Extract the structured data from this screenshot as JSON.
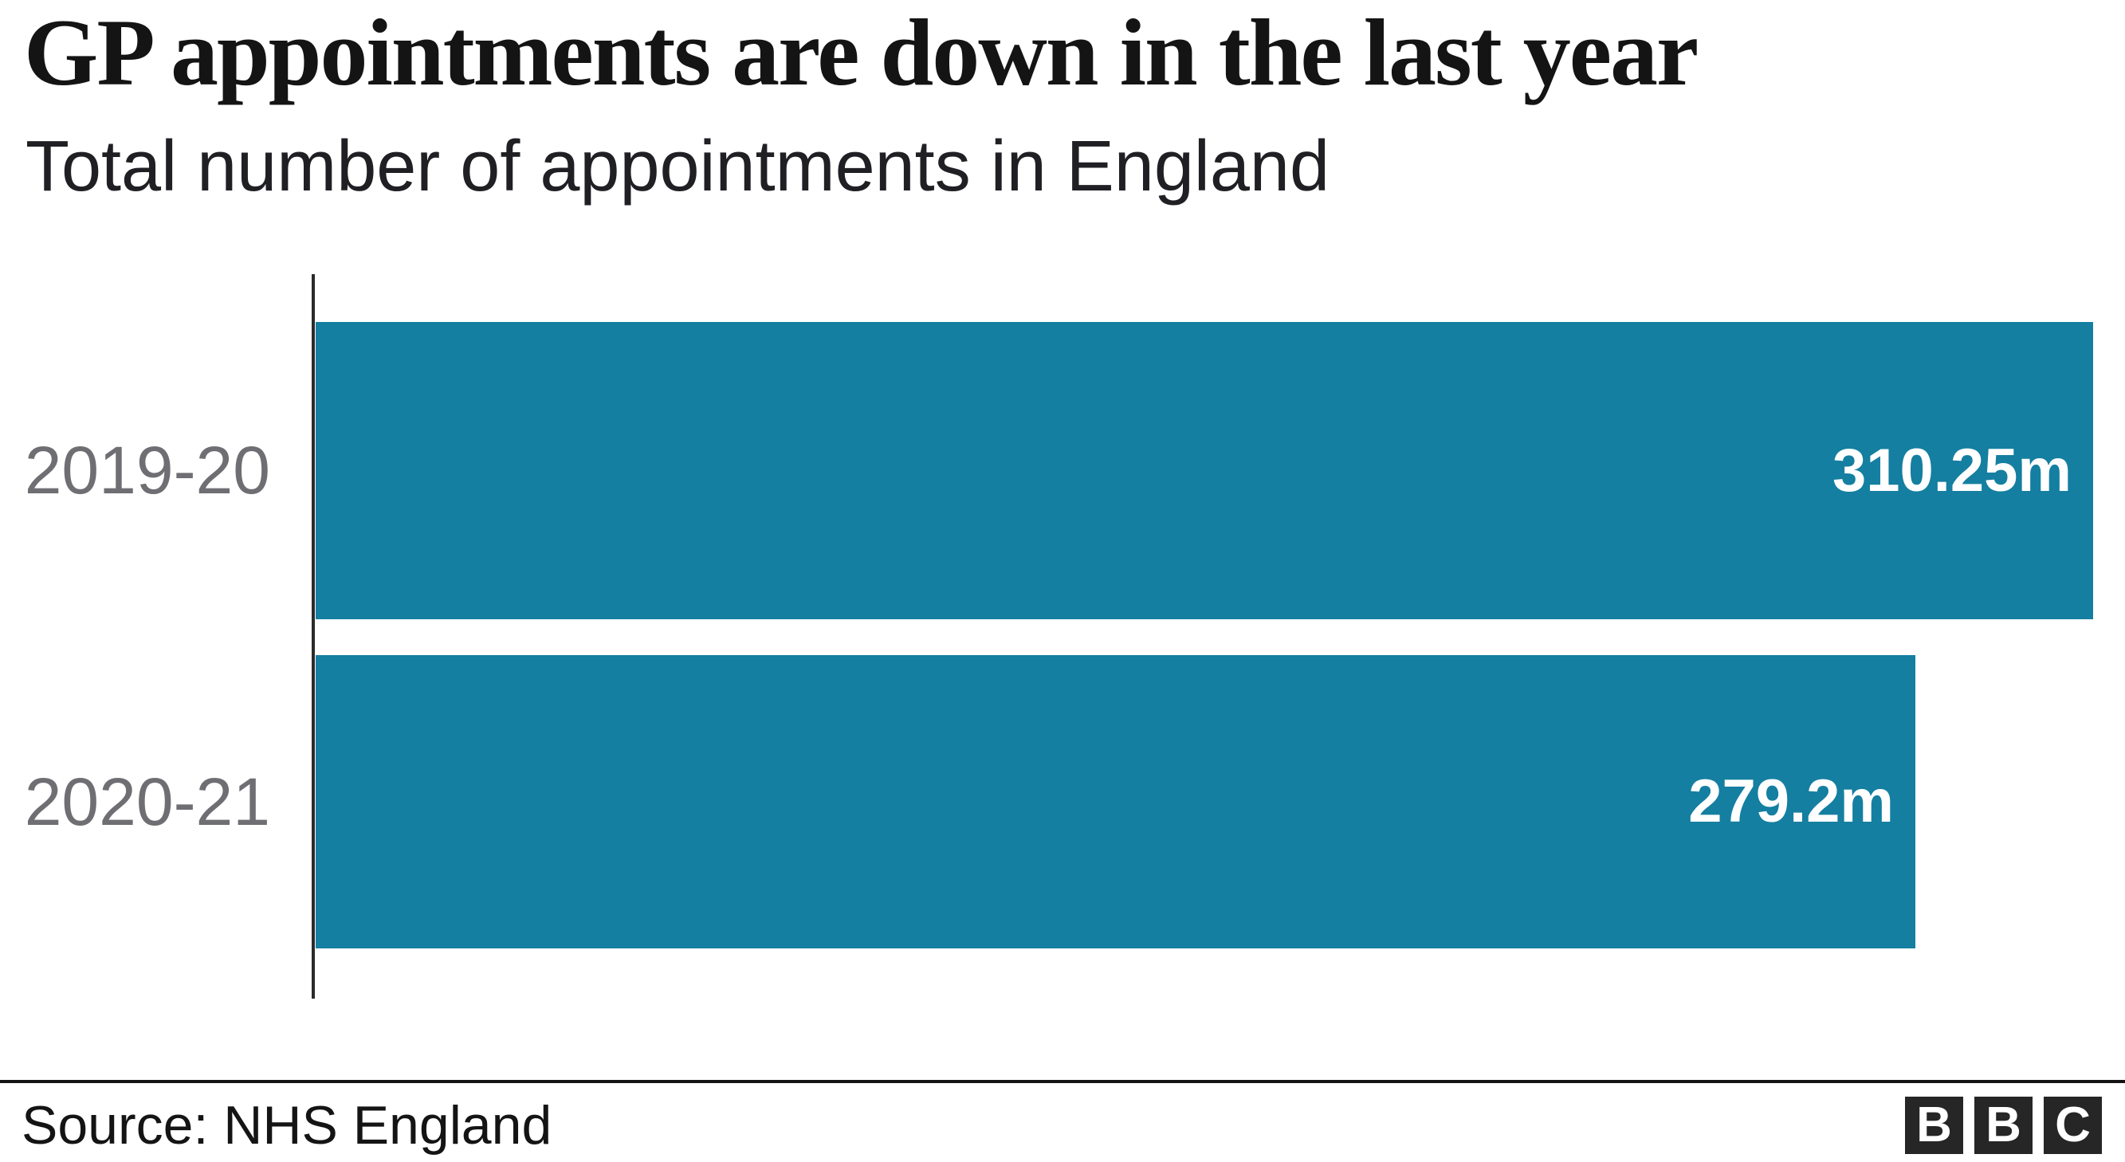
{
  "chart_data": {
    "type": "bar",
    "orientation": "horizontal",
    "title": "GP appointments are down in the last year",
    "subtitle": "Total number of appointments in England",
    "categories": [
      "2019-20",
      "2020-21"
    ],
    "values": [
      310.25,
      279.2
    ],
    "value_labels": [
      "310.25m",
      "279.2m"
    ],
    "unit": "millions of appointments",
    "xlim": [
      0,
      310.25
    ],
    "grid": false,
    "legend": false,
    "value_label_position": "inside-end"
  },
  "footer": {
    "source": "Source: NHS England",
    "logo_letters": [
      "B",
      "B",
      "C"
    ]
  },
  "colors": {
    "page_bg": "#ffffff",
    "bar": "#147fa0",
    "title": "#141414",
    "subtitle": "#202024",
    "category_label": "#6e6e73",
    "value_label": "#ffffff",
    "axis": "#2b2b2b",
    "divider": "#141414",
    "logo_square": "#262626"
  }
}
